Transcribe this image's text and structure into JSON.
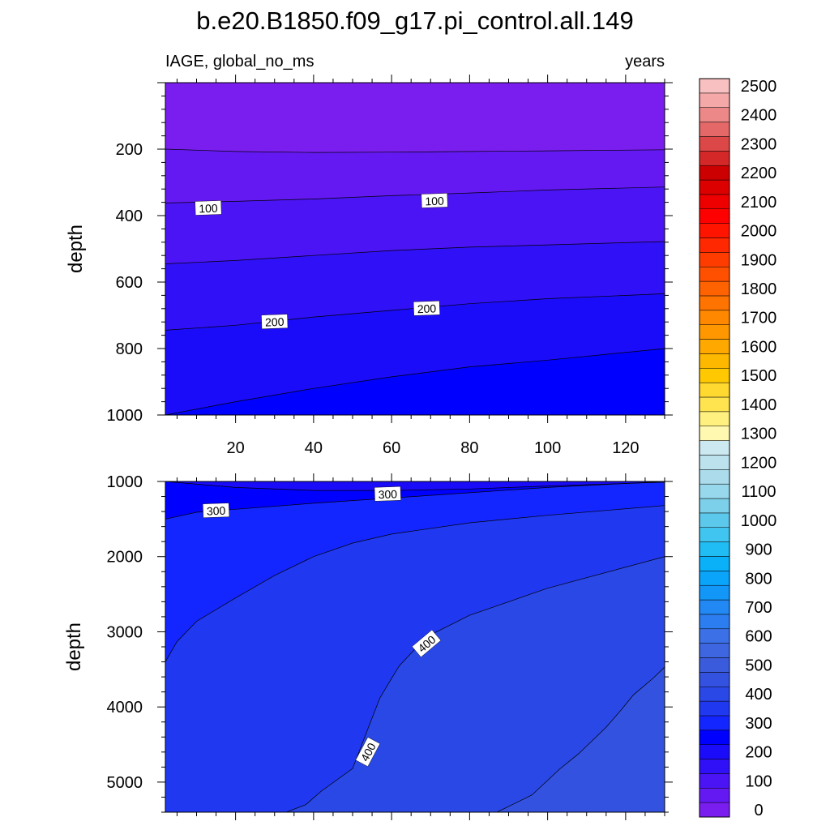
{
  "title": "b.e20.B1850.f09_g17.pi_control.all.149",
  "left_string": "IAGE, global_no_ms",
  "right_string": "years",
  "colorbar": {
    "levels": [
      0,
      50,
      100,
      150,
      200,
      250,
      300,
      350,
      400,
      450,
      500,
      550,
      600,
      650,
      700,
      750,
      800,
      850,
      900,
      950,
      1000,
      1050,
      1100,
      1150,
      1200,
      1250,
      1300,
      1350,
      1400,
      1450,
      1500,
      1550,
      1600,
      1650,
      1700,
      1750,
      1800,
      1850,
      1900,
      1950,
      2000,
      2050,
      2100,
      2150,
      2200,
      2250,
      2300,
      2350,
      2400,
      2450,
      2500,
      2550
    ],
    "labels": [
      "0",
      "100",
      "200",
      "300",
      "400",
      "500",
      "600",
      "700",
      "800",
      "900",
      "1000",
      "1100",
      "1200",
      "1300",
      "1400",
      "1500",
      "1600",
      "1700",
      "1800",
      "1900",
      "2000",
      "2100",
      "2200",
      "2300",
      "2400",
      "2500"
    ],
    "label_values": [
      0,
      100,
      200,
      300,
      400,
      500,
      600,
      700,
      800,
      900,
      1000,
      1100,
      1200,
      1300,
      1400,
      1500,
      1600,
      1700,
      1800,
      1900,
      2000,
      2100,
      2200,
      2300,
      2400,
      2500
    ],
    "colors": [
      "#7a1ef0",
      "#6419f2",
      "#4b14f4",
      "#3010f6",
      "#1a0cf8",
      "#0000ff",
      "#1426ff",
      "#2038f0",
      "#2a48e6",
      "#3452e0",
      "#3a5cdc",
      "#3e66e0",
      "#3c70e6",
      "#2c7ef0",
      "#2288f4",
      "#1296f8",
      "#0aa4fa",
      "#0ab0f8",
      "#20bcf4",
      "#40c4f0",
      "#5cc8ec",
      "#7cd0ea",
      "#98d8ec",
      "#acdcec",
      "#bce2ee",
      "#cce8f0",
      "#fff8b0",
      "#fff080",
      "#ffe450",
      "#ffd830",
      "#ffc800",
      "#ffb800",
      "#ffa800",
      "#ff9800",
      "#ff8800",
      "#ff7400",
      "#ff6200",
      "#ff5000",
      "#ff3c00",
      "#ff2800",
      "#ff1400",
      "#ff0000",
      "#ee0000",
      "#dc0000",
      "#cc0000",
      "#d42828",
      "#dc4848",
      "#e46868",
      "#ec8888",
      "#f4a8a8",
      "#f8c0c0"
    ]
  },
  "chart_data": [
    {
      "type": "contour",
      "panel": "upper",
      "xlabel": "",
      "ylabel": "depth",
      "xlim": [
        2,
        130
      ],
      "ylim": [
        0,
        1000
      ],
      "y_reversed": true,
      "xticks": [
        20,
        40,
        60,
        80,
        100,
        120
      ],
      "xtick_labels": [
        "20",
        "40",
        "60",
        "80",
        "100",
        "120"
      ],
      "yticks": [
        200,
        400,
        600,
        800,
        1000
      ],
      "ytick_labels": [
        "200",
        "400",
        "600",
        "800",
        "1000"
      ],
      "contours": [
        {
          "level": 50,
          "x": [
            2,
            20,
            40,
            60,
            80,
            100,
            130
          ],
          "depth": [
            200,
            207,
            210,
            209,
            207,
            205,
            202
          ]
        },
        {
          "level": 100,
          "x": [
            2,
            20,
            40,
            60,
            80,
            100,
            130
          ],
          "depth": [
            362,
            357,
            350,
            340,
            332,
            323,
            314
          ]
        },
        {
          "level": 150,
          "x": [
            2,
            20,
            40,
            60,
            80,
            100,
            130
          ],
          "depth": [
            545,
            535,
            520,
            505,
            495,
            488,
            478
          ]
        },
        {
          "level": 200,
          "x": [
            2,
            20,
            40,
            60,
            80,
            100,
            130
          ],
          "depth": [
            745,
            730,
            705,
            685,
            665,
            650,
            635
          ]
        },
        {
          "level": 250,
          "x": [
            2,
            20,
            40,
            60,
            80,
            100,
            130
          ],
          "depth": [
            1000,
            960,
            920,
            885,
            855,
            835,
            800
          ]
        }
      ],
      "contour_labels": [
        {
          "text": "100",
          "x": 13,
          "depth": 378
        },
        {
          "text": "100",
          "x": 71,
          "depth": 356
        },
        {
          "text": "200",
          "x": 30,
          "depth": 720
        },
        {
          "text": "200",
          "x": 69,
          "depth": 680
        }
      ]
    },
    {
      "type": "contour",
      "panel": "lower",
      "xlabel": "",
      "ylabel": "depth",
      "xlim": [
        2,
        130
      ],
      "ylim": [
        1000,
        5400
      ],
      "y_reversed": true,
      "yticks": [
        1000,
        2000,
        3000,
        4000,
        5000
      ],
      "ytick_labels": [
        "1000",
        "2000",
        "3000",
        "4000",
        "5000"
      ],
      "contours": [
        {
          "level": 250,
          "x": [
            2,
            20,
            40,
            60,
            80,
            100,
            130
          ],
          "depth": [
            1000,
            1080,
            1120,
            1120,
            1100,
            1060,
            1010
          ]
        },
        {
          "level": 300,
          "x": [
            2,
            10,
            20,
            40,
            60,
            80,
            100,
            130
          ],
          "depth": [
            1500,
            1410,
            1370,
            1290,
            1220,
            1150,
            1080,
            1000
          ]
        },
        {
          "level": 350,
          "x": [
            2,
            5,
            10,
            20,
            30,
            40,
            50,
            60,
            80,
            100,
            130
          ],
          "depth": [
            3400,
            3130,
            2860,
            2550,
            2250,
            2000,
            1820,
            1700,
            1550,
            1450,
            1320
          ]
        },
        {
          "level": 400,
          "x": [
            33,
            38,
            42,
            50,
            54,
            57,
            60,
            62,
            66,
            70,
            80,
            100,
            130
          ],
          "depth": [
            5400,
            5300,
            5120,
            4820,
            4280,
            3880,
            3620,
            3450,
            3230,
            3040,
            2780,
            2420,
            2000
          ]
        },
        {
          "level": 450,
          "x": [
            87,
            96,
            103,
            108,
            115,
            119,
            122,
            127,
            130
          ],
          "depth": [
            5400,
            5170,
            4830,
            4620,
            4270,
            4030,
            3840,
            3620,
            3470
          ]
        }
      ],
      "contour_labels": [
        {
          "text": "300",
          "x": 15,
          "depth": 1390
        },
        {
          "text": "300",
          "x": 59,
          "depth": 1170
        },
        {
          "text": "400",
          "x": 69,
          "depth": 3160
        },
        {
          "text": "400",
          "x": 54,
          "depth": 4600
        }
      ]
    }
  ]
}
